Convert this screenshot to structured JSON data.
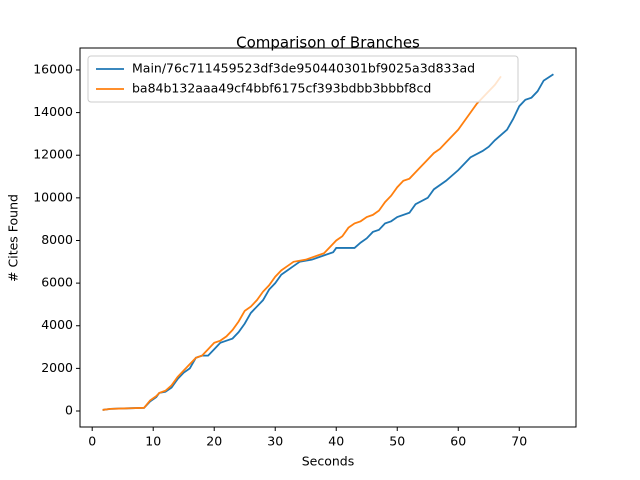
{
  "chart_data": {
    "type": "line",
    "title": "Comparison of Branches",
    "x_label": "Seconds",
    "y_label": "# Cites Found",
    "xlim": [
      -2.0,
      79.3
    ],
    "ylim": [
      -750,
      17030
    ],
    "xticks": [
      0,
      10,
      20,
      30,
      40,
      50,
      60,
      70
    ],
    "yticks": [
      0,
      2000,
      4000,
      6000,
      8000,
      10000,
      12000,
      14000,
      16000
    ],
    "legend": "upper left",
    "series": [
      {
        "name": "Main/76c711459523df3de950440301bf9025a3d833ad",
        "color": "#1f77b4",
        "x": [
          1.7,
          3,
          5,
          8.5,
          9.5,
          10.5,
          11,
          12,
          13,
          14,
          15,
          16,
          17,
          18,
          19,
          20,
          21,
          22,
          23,
          24,
          25,
          26,
          27,
          28,
          29,
          30,
          31,
          32,
          33,
          34,
          36,
          38,
          39.5,
          40,
          41,
          43,
          44,
          45,
          46,
          47,
          48,
          49,
          50,
          52,
          53,
          55,
          56,
          58,
          60,
          61,
          62,
          64,
          65,
          66,
          68,
          69,
          70,
          71,
          72,
          73,
          74,
          75.6
        ],
        "values": [
          50,
          100,
          120,
          150,
          450,
          650,
          850,
          900,
          1100,
          1500,
          1800,
          2000,
          2500,
          2600,
          2600,
          2900,
          3200,
          3300,
          3400,
          3700,
          4100,
          4600,
          4900,
          5200,
          5700,
          6000,
          6400,
          6600,
          6800,
          7000,
          7100,
          7300,
          7450,
          7650,
          7650,
          7650,
          7900,
          8100,
          8400,
          8500,
          8800,
          8900,
          9100,
          9300,
          9700,
          10000,
          10400,
          10800,
          11300,
          11600,
          11900,
          12200,
          12400,
          12700,
          13200,
          13700,
          14300,
          14600,
          14700,
          15000,
          15500,
          15800
        ]
      },
      {
        "name": "ba84b132aaa49cf4bbf6175cf393bdbb3bbbf8cd",
        "color": "#ff7f0e",
        "x": [
          1.7,
          3,
          8.5,
          9.5,
          10.5,
          11,
          12,
          13,
          14,
          15,
          16,
          17,
          18,
          19,
          20,
          21,
          22,
          23,
          24,
          25,
          26,
          27,
          28,
          29,
          30,
          31,
          32,
          33,
          35,
          37,
          38,
          39,
          40,
          41,
          42,
          43,
          44,
          45,
          46,
          47,
          48,
          49,
          50,
          51,
          52,
          53,
          54,
          55,
          56,
          57,
          58,
          59,
          60,
          61,
          62,
          63,
          64,
          65,
          66,
          67
        ],
        "values": [
          50,
          100,
          150,
          500,
          700,
          850,
          950,
          1200,
          1600,
          1900,
          2200,
          2500,
          2600,
          2900,
          3200,
          3300,
          3500,
          3800,
          4200,
          4700,
          4900,
          5200,
          5600,
          5900,
          6300,
          6600,
          6800,
          7000,
          7100,
          7300,
          7400,
          7700,
          8000,
          8200,
          8600,
          8800,
          8900,
          9100,
          9200,
          9400,
          9800,
          10100,
          10500,
          10800,
          10900,
          11200,
          11500,
          11800,
          12100,
          12300,
          12600,
          12900,
          13200,
          13600,
          14000,
          14400,
          14700,
          15000,
          15300,
          15700
        ]
      }
    ]
  }
}
